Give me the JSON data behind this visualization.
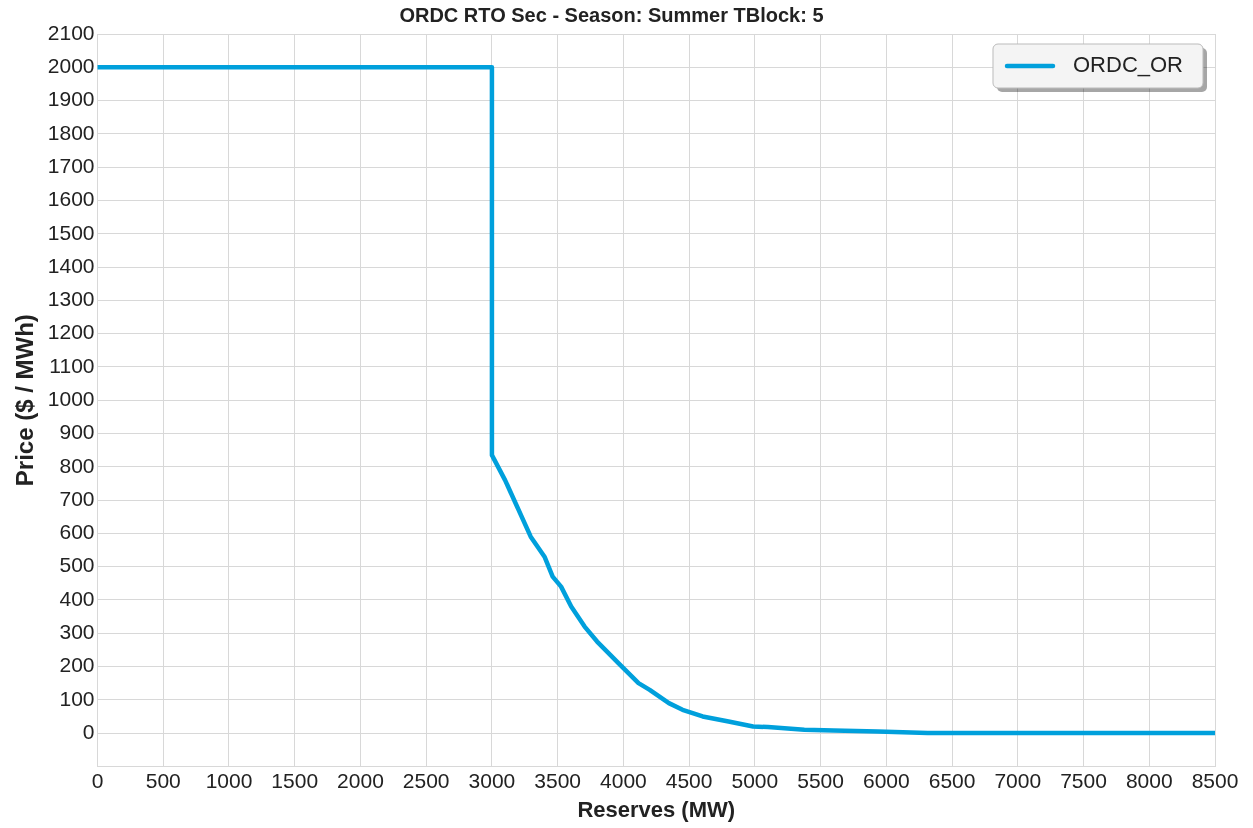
{
  "chart_data": {
    "type": "line",
    "title": "ORDC RTO Sec - Season: Summer TBlock: 5",
    "xlabel": "Reserves (MW)",
    "ylabel": "Price ($ / MWh)",
    "xlim": [
      0,
      8500
    ],
    "xticks": [
      0,
      500,
      1000,
      1500,
      2000,
      2500,
      3000,
      3500,
      4000,
      4500,
      5000,
      5500,
      6000,
      6500,
      7000,
      7500,
      8000,
      8500
    ],
    "ylim": [
      -100,
      2100
    ],
    "yticks": [
      0,
      100,
      200,
      300,
      400,
      500,
      600,
      700,
      800,
      900,
      1000,
      1100,
      1200,
      1300,
      1400,
      1500,
      1600,
      1700,
      1800,
      1900,
      2000,
      2100
    ],
    "grid": true,
    "legend": "top right",
    "marker": "none",
    "line_style": "solid",
    "series": [
      {
        "name": "ORDC_OR",
        "color": "#00a0dc",
        "x": [
          0,
          3000,
          3000,
          3100,
          3192,
          3295,
          3400,
          3462,
          3526,
          3603,
          3705,
          3800,
          3900,
          3962,
          4115,
          4200,
          4346,
          4450,
          4603,
          4800,
          4987,
          5100,
          5376,
          5600,
          5935,
          6315,
          7000,
          8500
        ],
        "values": [
          2000,
          2000,
          835,
          760,
          680,
          590,
          530,
          470,
          440,
          380,
          320,
          275,
          235,
          210,
          150,
          130,
          90,
          70,
          50,
          35,
          20,
          18,
          10,
          8,
          5,
          0,
          0,
          0
        ]
      }
    ]
  }
}
